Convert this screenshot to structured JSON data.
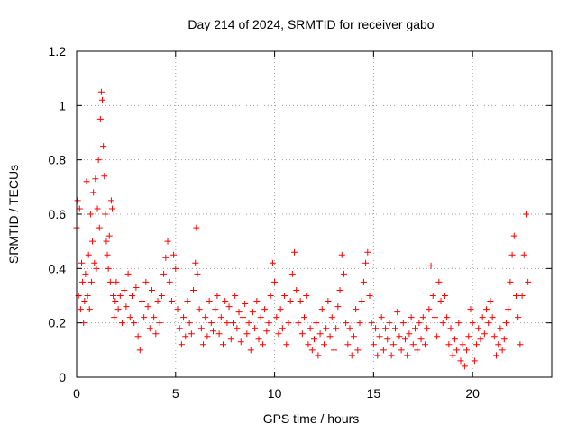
{
  "chart_data": {
    "type": "scatter",
    "title": "Day 214 of 2024, SRMTID for receiver gabo",
    "xlabel": "GPS time / hours",
    "ylabel": "SRMTID / TECUs",
    "xlim": [
      0,
      24
    ],
    "ylim": [
      0,
      1.2
    ],
    "x_ticks": [
      0,
      5,
      10,
      15,
      20
    ],
    "x_tick_labels": [
      "0",
      "5",
      "10",
      "15",
      "20"
    ],
    "y_ticks": [
      0,
      0.2,
      0.4,
      0.6,
      0.8,
      1.0,
      1.2
    ],
    "y_tick_labels": [
      "0",
      "0.2",
      "0.4",
      "0.6",
      "0.8",
      "1",
      "1.2"
    ],
    "grid": true,
    "marker": "plus",
    "series": [
      {
        "name": "SRMTID",
        "color": "#ff0000",
        "points": [
          [
            0.0,
            0.55
          ],
          [
            0.05,
            0.65
          ],
          [
            0.1,
            0.3
          ],
          [
            0.15,
            0.62
          ],
          [
            0.2,
            0.25
          ],
          [
            0.25,
            0.42
          ],
          [
            0.3,
            0.35
          ],
          [
            0.35,
            0.2
          ],
          [
            0.4,
            0.28
          ],
          [
            0.45,
            0.38
          ],
          [
            0.5,
            0.72
          ],
          [
            0.55,
            0.3
          ],
          [
            0.6,
            0.45
          ],
          [
            0.65,
            0.25
          ],
          [
            0.7,
            0.6
          ],
          [
            0.75,
            0.35
          ],
          [
            0.8,
            0.5
          ],
          [
            0.85,
            0.68
          ],
          [
            0.9,
            0.42
          ],
          [
            0.95,
            0.73
          ],
          [
            1.0,
            0.4
          ],
          [
            1.05,
            0.62
          ],
          [
            1.1,
            0.8
          ],
          [
            1.15,
            0.55
          ],
          [
            1.2,
            0.95
          ],
          [
            1.25,
            1.05
          ],
          [
            1.3,
            1.02
          ],
          [
            1.35,
            0.85
          ],
          [
            1.4,
            0.74
          ],
          [
            1.45,
            0.6
          ],
          [
            1.5,
            0.5
          ],
          [
            1.55,
            0.45
          ],
          [
            1.6,
            0.4
          ],
          [
            1.65,
            0.52
          ],
          [
            1.7,
            0.35
          ],
          [
            1.75,
            0.65
          ],
          [
            1.8,
            0.62
          ],
          [
            1.85,
            0.3
          ],
          [
            1.9,
            0.22
          ],
          [
            1.95,
            0.28
          ],
          [
            2.0,
            0.35
          ],
          [
            2.1,
            0.25
          ],
          [
            2.2,
            0.3
          ],
          [
            2.3,
            0.2
          ],
          [
            2.4,
            0.32
          ],
          [
            2.5,
            0.26
          ],
          [
            2.6,
            0.38
          ],
          [
            2.7,
            0.22
          ],
          [
            2.8,
            0.3
          ],
          [
            2.9,
            0.2
          ],
          [
            3.0,
            0.33
          ],
          [
            3.1,
            0.15
          ],
          [
            3.2,
            0.1
          ],
          [
            3.3,
            0.28
          ],
          [
            3.4,
            0.22
          ],
          [
            3.5,
            0.35
          ],
          [
            3.6,
            0.26
          ],
          [
            3.7,
            0.18
          ],
          [
            3.8,
            0.32
          ],
          [
            3.9,
            0.22
          ],
          [
            4.0,
            0.16
          ],
          [
            4.1,
            0.28
          ],
          [
            4.2,
            0.2
          ],
          [
            4.3,
            0.3
          ],
          [
            4.4,
            0.38
          ],
          [
            4.5,
            0.44
          ],
          [
            4.6,
            0.5
          ],
          [
            4.7,
            0.35
          ],
          [
            4.8,
            0.28
          ],
          [
            4.9,
            0.45
          ],
          [
            5.0,
            0.4
          ],
          [
            5.1,
            0.25
          ],
          [
            5.2,
            0.18
          ],
          [
            5.3,
            0.12
          ],
          [
            5.4,
            0.22
          ],
          [
            5.5,
            0.15
          ],
          [
            5.6,
            0.28
          ],
          [
            5.7,
            0.2
          ],
          [
            5.8,
            0.16
          ],
          [
            5.9,
            0.32
          ],
          [
            6.0,
            0.42
          ],
          [
            6.05,
            0.55
          ],
          [
            6.1,
            0.38
          ],
          [
            6.2,
            0.25
          ],
          [
            6.3,
            0.18
          ],
          [
            6.4,
            0.12
          ],
          [
            6.5,
            0.22
          ],
          [
            6.6,
            0.15
          ],
          [
            6.7,
            0.28
          ],
          [
            6.8,
            0.2
          ],
          [
            6.9,
            0.17
          ],
          [
            7.0,
            0.25
          ],
          [
            7.1,
            0.3
          ],
          [
            7.2,
            0.16
          ],
          [
            7.3,
            0.22
          ],
          [
            7.4,
            0.12
          ],
          [
            7.5,
            0.28
          ],
          [
            7.6,
            0.2
          ],
          [
            7.7,
            0.26
          ],
          [
            7.8,
            0.14
          ],
          [
            7.9,
            0.2
          ],
          [
            8.0,
            0.3
          ],
          [
            8.1,
            0.18
          ],
          [
            8.2,
            0.24
          ],
          [
            8.3,
            0.13
          ],
          [
            8.4,
            0.22
          ],
          [
            8.5,
            0.27
          ],
          [
            8.6,
            0.16
          ],
          [
            8.7,
            0.2
          ],
          [
            8.8,
            0.1
          ],
          [
            8.9,
            0.24
          ],
          [
            9.0,
            0.18
          ],
          [
            9.1,
            0.28
          ],
          [
            9.2,
            0.14
          ],
          [
            9.3,
            0.22
          ],
          [
            9.4,
            0.12
          ],
          [
            9.5,
            0.25
          ],
          [
            9.6,
            0.17
          ],
          [
            9.7,
            0.2
          ],
          [
            9.8,
            0.3
          ],
          [
            9.9,
            0.42
          ],
          [
            10.0,
            0.35
          ],
          [
            10.1,
            0.22
          ],
          [
            10.2,
            0.16
          ],
          [
            10.3,
            0.25
          ],
          [
            10.4,
            0.18
          ],
          [
            10.5,
            0.3
          ],
          [
            10.6,
            0.12
          ],
          [
            10.7,
            0.2
          ],
          [
            10.8,
            0.28
          ],
          [
            10.9,
            0.38
          ],
          [
            11.0,
            0.46
          ],
          [
            11.1,
            0.32
          ],
          [
            11.2,
            0.2
          ],
          [
            11.3,
            0.28
          ],
          [
            11.4,
            0.16
          ],
          [
            11.5,
            0.22
          ],
          [
            11.6,
            0.3
          ],
          [
            11.7,
            0.12
          ],
          [
            11.8,
            0.18
          ],
          [
            11.9,
            0.1
          ],
          [
            12.0,
            0.14
          ],
          [
            12.1,
            0.2
          ],
          [
            12.2,
            0.08
          ],
          [
            12.3,
            0.16
          ],
          [
            12.4,
            0.25
          ],
          [
            12.5,
            0.12
          ],
          [
            12.6,
            0.18
          ],
          [
            12.7,
            0.28
          ],
          [
            12.8,
            0.15
          ],
          [
            12.9,
            0.22
          ],
          [
            13.0,
            0.1
          ],
          [
            13.1,
            0.18
          ],
          [
            13.2,
            0.26
          ],
          [
            13.3,
            0.32
          ],
          [
            13.4,
            0.45
          ],
          [
            13.5,
            0.38
          ],
          [
            13.6,
            0.2
          ],
          [
            13.7,
            0.12
          ],
          [
            13.8,
            0.18
          ],
          [
            13.9,
            0.08
          ],
          [
            14.0,
            0.15
          ],
          [
            14.1,
            0.25
          ],
          [
            14.2,
            0.1
          ],
          [
            14.3,
            0.2
          ],
          [
            14.4,
            0.28
          ],
          [
            14.5,
            0.35
          ],
          [
            14.6,
            0.42
          ],
          [
            14.7,
            0.46
          ],
          [
            14.8,
            0.3
          ],
          [
            14.9,
            0.2
          ],
          [
            15.0,
            0.12
          ],
          [
            15.1,
            0.18
          ],
          [
            15.2,
            0.08
          ],
          [
            15.3,
            0.15
          ],
          [
            15.4,
            0.22
          ],
          [
            15.5,
            0.1
          ],
          [
            15.6,
            0.18
          ],
          [
            15.7,
            0.14
          ],
          [
            15.8,
            0.2
          ],
          [
            15.9,
            0.08
          ],
          [
            16.0,
            0.12
          ],
          [
            16.1,
            0.18
          ],
          [
            16.2,
            0.24
          ],
          [
            16.3,
            0.15
          ],
          [
            16.4,
            0.1
          ],
          [
            16.5,
            0.2
          ],
          [
            16.6,
            0.14
          ],
          [
            16.7,
            0.08
          ],
          [
            16.8,
            0.16
          ],
          [
            16.9,
            0.22
          ],
          [
            17.0,
            0.12
          ],
          [
            17.1,
            0.18
          ],
          [
            17.2,
            0.1
          ],
          [
            17.3,
            0.2
          ],
          [
            17.4,
            0.14
          ],
          [
            17.5,
            0.22
          ],
          [
            17.6,
            0.12
          ],
          [
            17.7,
            0.18
          ],
          [
            17.8,
            0.25
          ],
          [
            17.9,
            0.41
          ],
          [
            18.0,
            0.3
          ],
          [
            18.1,
            0.22
          ],
          [
            18.2,
            0.15
          ],
          [
            18.3,
            0.35
          ],
          [
            18.4,
            0.28
          ],
          [
            18.5,
            0.2
          ],
          [
            18.6,
            0.3
          ],
          [
            18.7,
            0.22
          ],
          [
            18.8,
            0.12
          ],
          [
            18.9,
            0.18
          ],
          [
            19.0,
            0.08
          ],
          [
            19.1,
            0.14
          ],
          [
            19.2,
            0.1
          ],
          [
            19.3,
            0.2
          ],
          [
            19.4,
            0.06
          ],
          [
            19.5,
            0.12
          ],
          [
            19.6,
            0.04
          ],
          [
            19.7,
            0.1
          ],
          [
            19.8,
            0.15
          ],
          [
            19.9,
            0.25
          ],
          [
            20.0,
            0.2
          ],
          [
            20.1,
            0.06
          ],
          [
            20.2,
            0.12
          ],
          [
            20.3,
            0.18
          ],
          [
            20.4,
            0.14
          ],
          [
            20.5,
            0.22
          ],
          [
            20.6,
            0.16
          ],
          [
            20.7,
            0.25
          ],
          [
            20.8,
            0.2
          ],
          [
            20.9,
            0.28
          ],
          [
            21.0,
            0.22
          ],
          [
            21.1,
            0.15
          ],
          [
            21.2,
            0.08
          ],
          [
            21.3,
            0.12
          ],
          [
            21.4,
            0.18
          ],
          [
            21.5,
            0.1
          ],
          [
            21.6,
            0.14
          ],
          [
            21.7,
            0.2
          ],
          [
            21.8,
            0.25
          ],
          [
            21.9,
            0.35
          ],
          [
            22.0,
            0.45
          ],
          [
            22.1,
            0.52
          ],
          [
            22.2,
            0.3
          ],
          [
            22.3,
            0.22
          ],
          [
            22.4,
            0.12
          ],
          [
            22.5,
            0.3
          ],
          [
            22.6,
            0.45
          ],
          [
            22.7,
            0.6
          ],
          [
            22.8,
            0.35
          ]
        ]
      }
    ]
  }
}
